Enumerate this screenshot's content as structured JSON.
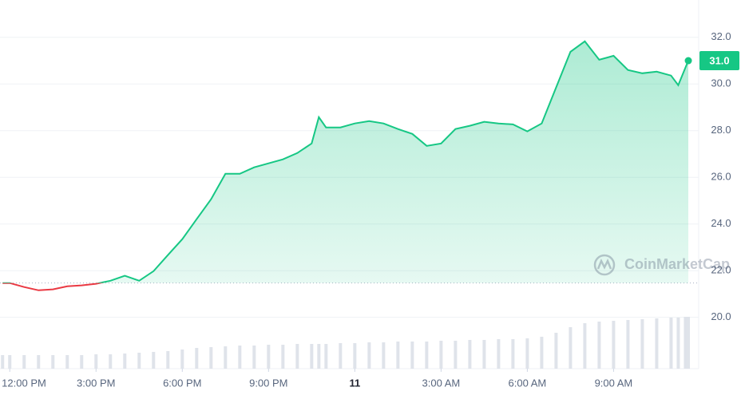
{
  "chart_data": {
    "type": "line",
    "x": [
      11.75,
      12,
      12.5,
      13,
      13.5,
      14,
      14.5,
      15,
      15.5,
      16,
      16.5,
      17,
      17.5,
      18,
      18.5,
      19,
      19.5,
      20,
      20.5,
      21,
      21.5,
      22,
      22.5,
      22.75,
      23,
      23.5,
      24,
      24.5,
      25,
      25.5,
      26,
      26.5,
      27,
      27.5,
      28,
      28.5,
      29,
      29.5,
      30,
      30.5,
      31,
      31.5,
      32,
      32.5,
      33,
      33.5,
      34,
      34.5,
      35,
      35.25,
      35.5,
      35.6
    ],
    "values": [
      21.47,
      21.47,
      21.3,
      21.16,
      21.2,
      21.33,
      21.37,
      21.44,
      21.57,
      21.78,
      21.57,
      21.98,
      22.67,
      23.35,
      24.21,
      25.06,
      26.15,
      26.15,
      26.43,
      26.6,
      26.77,
      27.04,
      27.45,
      28.58,
      28.14,
      28.14,
      28.31,
      28.41,
      28.31,
      28.07,
      27.86,
      27.35,
      27.45,
      28.07,
      28.21,
      28.38,
      28.31,
      28.27,
      27.97,
      28.31,
      29.85,
      31.38,
      31.83,
      31.04,
      31.21,
      30.6,
      30.46,
      30.53,
      30.36,
      29.95,
      30.7,
      31.0
    ],
    "volume": [
      17,
      17,
      17,
      17,
      17,
      17,
      17,
      18,
      18,
      19,
      20,
      21,
      22,
      24,
      26,
      27,
      28,
      29,
      29,
      30,
      30,
      31,
      31,
      31,
      31,
      32,
      32,
      33,
      33,
      34,
      34,
      34,
      35,
      35,
      36,
      36,
      37,
      37,
      38,
      40,
      45,
      52,
      57,
      59,
      60,
      61,
      62,
      63,
      64,
      64,
      65,
      65
    ],
    "color_up": "#16c784",
    "color_down": "#ea3943",
    "reference_line": 21.47,
    "xlim": [
      11.66,
      35.96
    ],
    "ylim": [
      17.8,
      33.6
    ],
    "xticks": [
      {
        "value": 12,
        "label": "12:00 PM"
      },
      {
        "value": 15,
        "label": "3:00 PM"
      },
      {
        "value": 18,
        "label": "6:00 PM"
      },
      {
        "value": 21,
        "label": "9:00 PM"
      },
      {
        "value": 24,
        "label": "11"
      },
      {
        "value": 27,
        "label": "3:00 AM"
      },
      {
        "value": 30,
        "label": "6:00 AM"
      },
      {
        "value": 33,
        "label": "9:00 AM"
      }
    ],
    "yticks": [
      {
        "value": 20,
        "label": "20.0"
      },
      {
        "value": 22,
        "label": "22.0"
      },
      {
        "value": 24,
        "label": "24.0"
      },
      {
        "value": 26,
        "label": "26.0"
      },
      {
        "value": 28,
        "label": "28.0"
      },
      {
        "value": 30,
        "label": "30.0"
      },
      {
        "value": 32,
        "label": "32.0"
      }
    ],
    "price_tag": {
      "value": 31,
      "label": "31.0"
    },
    "watermark": "CoinMarketCap",
    "grid": true
  }
}
